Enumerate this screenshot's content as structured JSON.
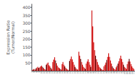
{
  "chart_data": {
    "type": "bar",
    "ylabel": "Expression Ratio\n(Tumor/Normal)",
    "categories": [
      "P1",
      "P2",
      "P3",
      "P4",
      "P5",
      "P6",
      "P7",
      "P8",
      "P9",
      "P10",
      "P11",
      "P12",
      "P13",
      "P14",
      "P15",
      "P16",
      "P17",
      "P18",
      "P19",
      "P20",
      "P21",
      "P22",
      "P23",
      "P24",
      "P25",
      "P26",
      "P27",
      "P28",
      "P29",
      "P30",
      "P31",
      "P32",
      "P33",
      "P34",
      "P35",
      "P36",
      "P37",
      "P38",
      "P39",
      "P40",
      "P41",
      "P42",
      "P43",
      "P44",
      "P45",
      "P46",
      "P47",
      "P48",
      "P49",
      "P50",
      "P51",
      "P52",
      "P53",
      "P54",
      "P55",
      "P56",
      "P57",
      "P58",
      "P59",
      "P60",
      "P61",
      "P62",
      "P63",
      "P64",
      "P65",
      "P66",
      "P67",
      "P68",
      "P69",
      "P70",
      "P71",
      "P72",
      "P73",
      "P74",
      "P75",
      "P76",
      "P77",
      "P78",
      "P79",
      "P80",
      "P81",
      "P82",
      "P83",
      "P84",
      "P85",
      "P86",
      "P87",
      "P88",
      "P89",
      "P90",
      "P91",
      "P92",
      "P93",
      "P94",
      "P95",
      "P96",
      "P97",
      "P98",
      "P99",
      "P100",
      "P101",
      "P102",
      "P103",
      "P104",
      "P105",
      "P106",
      "P107",
      "P108",
      "P109",
      "P110"
    ],
    "values": [
      5,
      8,
      12,
      7,
      15,
      20,
      25,
      18,
      22,
      28,
      32,
      25,
      18,
      12,
      8,
      38,
      45,
      52,
      35,
      28,
      18,
      10,
      55,
      70,
      85,
      65,
      48,
      32,
      22,
      18,
      12,
      8,
      42,
      55,
      38,
      28,
      18,
      12,
      8,
      5,
      62,
      75,
      90,
      72,
      55,
      38,
      25,
      15,
      10,
      8,
      120,
      95,
      75,
      55,
      38,
      25,
      18,
      12,
      45,
      58,
      72,
      55,
      38,
      25,
      380,
      280,
      180,
      130,
      95,
      72,
      55,
      38,
      25,
      18,
      12,
      8,
      5,
      28,
      38,
      52,
      68,
      88,
      110,
      88,
      65,
      45,
      28,
      18,
      12,
      8,
      22,
      32,
      45,
      60,
      78,
      95,
      75,
      55,
      38,
      25,
      18,
      12,
      42,
      58,
      75,
      58,
      42,
      28,
      18,
      12
    ],
    "colors": [
      "#cc0000",
      "#550000",
      "#cc0000",
      "#cc0000",
      "#550000",
      "#cc0000",
      "#cc0000",
      "#550000",
      "#cc0000",
      "#cc0000",
      "#cc0000",
      "#550000",
      "#cc0000",
      "#cc0000",
      "#cc0000",
      "#550000",
      "#cc0000",
      "#cc0000",
      "#cc0000",
      "#cc0000",
      "#550000",
      "#cc0000",
      "#cc0000",
      "#cc0000",
      "#cc0000",
      "#550000",
      "#cc0000",
      "#cc0000",
      "#cc0000",
      "#cc0000",
      "#550000",
      "#cc0000",
      "#cc0000",
      "#cc0000",
      "#cc0000",
      "#550000",
      "#cc0000",
      "#cc0000",
      "#cc0000",
      "#cc0000",
      "#550000",
      "#cc0000",
      "#cc0000",
      "#cc0000",
      "#cc0000",
      "#cc0000",
      "#550000",
      "#cc0000",
      "#cc0000",
      "#cc0000",
      "#cc0000",
      "#cc0000",
      "#550000",
      "#cc0000",
      "#cc0000",
      "#cc0000",
      "#cc0000",
      "#550000",
      "#cc0000",
      "#cc0000",
      "#cc0000",
      "#cc0000",
      "#cc0000",
      "#550000",
      "#cc0000",
      "#cc0000",
      "#cc0000",
      "#cc0000",
      "#550000",
      "#cc0000",
      "#cc0000",
      "#cc0000",
      "#cc0000",
      "#cc0000",
      "#550000",
      "#cc0000",
      "#cc0000",
      "#cc0000",
      "#cc0000",
      "#cc0000",
      "#550000",
      "#cc0000",
      "#cc0000",
      "#cc0000",
      "#cc0000",
      "#cc0000",
      "#550000",
      "#cc0000",
      "#cc0000",
      "#cc0000",
      "#cc0000",
      "#cc0000",
      "#550000",
      "#cc0000",
      "#cc0000",
      "#cc0000",
      "#cc0000",
      "#cc0000",
      "#550000",
      "#cc0000",
      "#cc0000",
      "#cc0000",
      "#cc0000",
      "#cc0000",
      "#550000",
      "#cc0000",
      "#cc0000",
      "#cc0000",
      "#cc0000",
      "#cc0000"
    ],
    "ylim": [
      0,
      420
    ],
    "yticks": [
      50,
      100,
      150,
      200,
      250,
      300,
      350,
      400
    ],
    "grid": false
  }
}
